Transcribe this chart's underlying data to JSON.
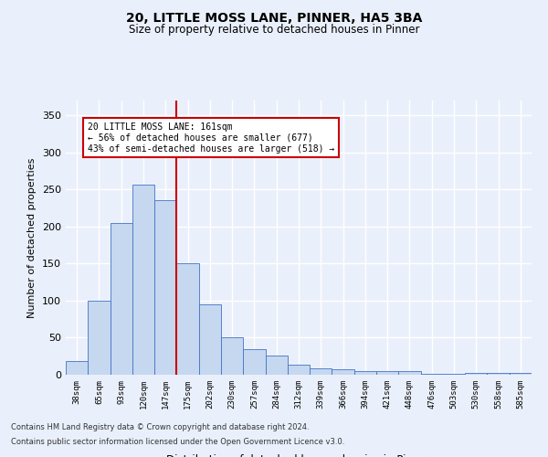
{
  "title1": "20, LITTLE MOSS LANE, PINNER, HA5 3BA",
  "title2": "Size of property relative to detached houses in Pinner",
  "xlabel": "Distribution of detached houses by size in Pinner",
  "ylabel": "Number of detached properties",
  "categories": [
    "38sqm",
    "65sqm",
    "93sqm",
    "120sqm",
    "147sqm",
    "175sqm",
    "202sqm",
    "230sqm",
    "257sqm",
    "284sqm",
    "312sqm",
    "339sqm",
    "366sqm",
    "394sqm",
    "421sqm",
    "448sqm",
    "476sqm",
    "503sqm",
    "530sqm",
    "558sqm",
    "585sqm"
  ],
  "values": [
    18,
    100,
    205,
    257,
    235,
    150,
    95,
    51,
    35,
    26,
    14,
    9,
    7,
    5,
    5,
    5,
    1,
    1,
    3,
    2,
    3
  ],
  "bar_color": "#c5d8f0",
  "bar_edge_color": "#4472c4",
  "background_color": "#eaf0fb",
  "grid_color": "#ffffff",
  "vline_color": "#cc0000",
  "annotation_text": "20 LITTLE MOSS LANE: 161sqm\n← 56% of detached houses are smaller (677)\n43% of semi-detached houses are larger (518) →",
  "annotation_box_color": "#ffffff",
  "annotation_box_edge": "#cc0000",
  "ylim": [
    0,
    370
  ],
  "yticks": [
    0,
    50,
    100,
    150,
    200,
    250,
    300,
    350
  ],
  "footer1": "Contains HM Land Registry data © Crown copyright and database right 2024.",
  "footer2": "Contains public sector information licensed under the Open Government Licence v3.0."
}
